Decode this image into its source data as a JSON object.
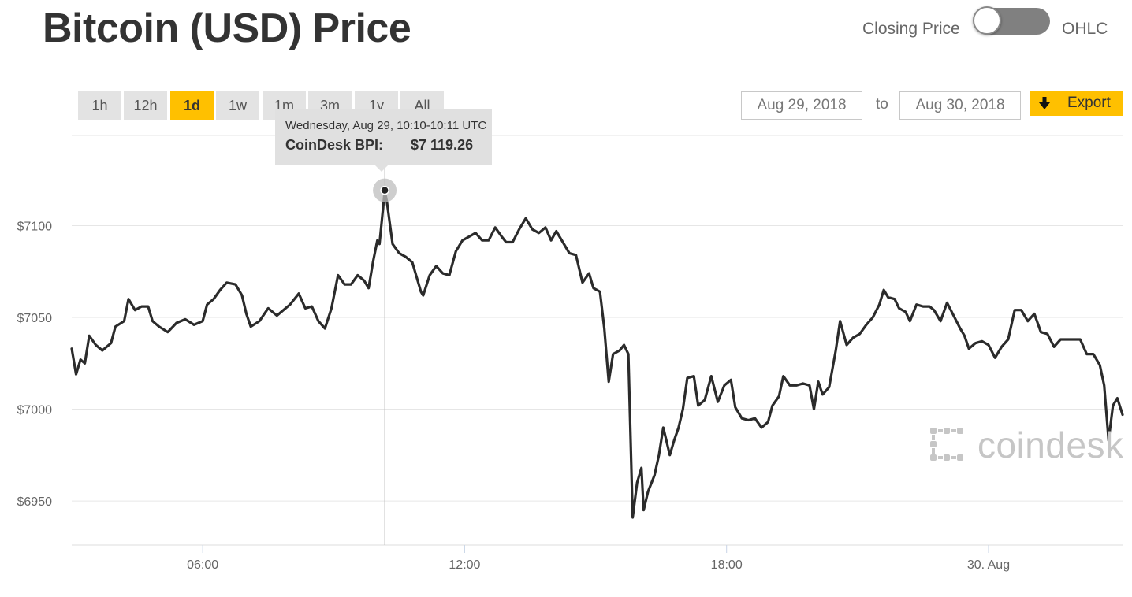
{
  "page": {
    "title": "Bitcoin (USD) Price"
  },
  "view_toggle": {
    "left_label": "Closing Price",
    "right_label": "OHLC",
    "state": "off"
  },
  "range_buttons": [
    {
      "label": "1h",
      "active": false
    },
    {
      "label": "12h",
      "active": false
    },
    {
      "label": "1d",
      "active": true
    },
    {
      "label": "1w",
      "active": false
    },
    {
      "label": "1m",
      "active": false
    },
    {
      "label": "3m",
      "active": false
    },
    {
      "label": "1y",
      "active": false
    },
    {
      "label": "All",
      "active": false
    }
  ],
  "date_range": {
    "from": "Aug 29, 2018",
    "to_label": "to",
    "to": "Aug 30, 2018"
  },
  "export": {
    "label": "Export",
    "icon": "download-arrow-icon"
  },
  "tooltip": {
    "time": "Wednesday, Aug 29, 10:10-10:11 UTC",
    "series_label": "CoinDesk BPI:",
    "value_label": "$7 119.26"
  },
  "logo": {
    "text": "coindesk",
    "icon": "coindesk-logo-icon"
  },
  "colors": {
    "accent": "#ffc000",
    "line": "#2b2b2b",
    "grid": "#e6e6e6",
    "button": "#e3e3e3"
  },
  "chart_data": {
    "type": "line",
    "x_unit": "hours since 00:00 Aug 29 UTC",
    "y_ticks": [
      {
        "value": 7100,
        "label": "$7100"
      },
      {
        "value": 7050,
        "label": "$7050"
      },
      {
        "value": 7000,
        "label": "$7000"
      },
      {
        "value": 6950,
        "label": "$6950"
      }
    ],
    "x_ticks": [
      {
        "value": 6,
        "label": "06:00"
      },
      {
        "value": 12,
        "label": "12:00"
      },
      {
        "value": 18,
        "label": "18:00"
      },
      {
        "value": 24,
        "label": "30. Aug"
      }
    ],
    "ylim": [
      6926,
      7150
    ],
    "xlim": [
      3.0,
      27.07
    ],
    "grid": true,
    "highlight": {
      "x": 10.17,
      "y": 7119.26
    },
    "series": [
      {
        "values": [
          [
            3.0,
            7033
          ],
          [
            3.1,
            7019
          ],
          [
            3.2,
            7027
          ],
          [
            3.3,
            7025
          ],
          [
            3.4,
            7040
          ],
          [
            3.55,
            7035
          ],
          [
            3.7,
            7032
          ],
          [
            3.9,
            7036
          ],
          [
            4.0,
            7045
          ],
          [
            4.2,
            7048
          ],
          [
            4.3,
            7060
          ],
          [
            4.45,
            7054
          ],
          [
            4.6,
            7056
          ],
          [
            4.75,
            7056
          ],
          [
            4.85,
            7048
          ],
          [
            5.0,
            7045
          ],
          [
            5.2,
            7042
          ],
          [
            5.4,
            7047
          ],
          [
            5.6,
            7049
          ],
          [
            5.8,
            7046
          ],
          [
            6.0,
            7048
          ],
          [
            6.1,
            7057
          ],
          [
            6.25,
            7060
          ],
          [
            6.4,
            7065
          ],
          [
            6.55,
            7069
          ],
          [
            6.75,
            7068
          ],
          [
            6.9,
            7062
          ],
          [
            7.0,
            7052
          ],
          [
            7.1,
            7045
          ],
          [
            7.3,
            7048
          ],
          [
            7.5,
            7055
          ],
          [
            7.7,
            7051
          ],
          [
            7.8,
            7053
          ],
          [
            8.0,
            7057
          ],
          [
            8.2,
            7063
          ],
          [
            8.35,
            7055
          ],
          [
            8.5,
            7056
          ],
          [
            8.65,
            7048
          ],
          [
            8.8,
            7044
          ],
          [
            8.95,
            7055
          ],
          [
            9.1,
            7073
          ],
          [
            9.25,
            7068
          ],
          [
            9.4,
            7068
          ],
          [
            9.55,
            7073
          ],
          [
            9.7,
            7070
          ],
          [
            9.8,
            7066
          ],
          [
            9.9,
            7080
          ],
          [
            10.0,
            7092
          ],
          [
            10.05,
            7090
          ],
          [
            10.17,
            7119
          ],
          [
            10.22,
            7113
          ],
          [
            10.35,
            7090
          ],
          [
            10.5,
            7085
          ],
          [
            10.65,
            7083
          ],
          [
            10.8,
            7080
          ],
          [
            10.9,
            7072
          ],
          [
            11.0,
            7064
          ],
          [
            11.05,
            7062
          ],
          [
            11.2,
            7073
          ],
          [
            11.35,
            7078
          ],
          [
            11.5,
            7074
          ],
          [
            11.65,
            7073
          ],
          [
            11.8,
            7086
          ],
          [
            11.95,
            7092
          ],
          [
            12.1,
            7094
          ],
          [
            12.25,
            7096
          ],
          [
            12.4,
            7092
          ],
          [
            12.55,
            7092
          ],
          [
            12.7,
            7099
          ],
          [
            12.85,
            7094
          ],
          [
            12.95,
            7091
          ],
          [
            13.1,
            7091
          ],
          [
            13.25,
            7098
          ],
          [
            13.4,
            7104
          ],
          [
            13.55,
            7098
          ],
          [
            13.7,
            7096
          ],
          [
            13.85,
            7099
          ],
          [
            13.98,
            7092
          ],
          [
            14.1,
            7097
          ],
          [
            14.25,
            7091
          ],
          [
            14.4,
            7085
          ],
          [
            14.55,
            7084
          ],
          [
            14.7,
            7069
          ],
          [
            14.85,
            7074
          ],
          [
            14.95,
            7066
          ],
          [
            15.1,
            7064
          ],
          [
            15.2,
            7044
          ],
          [
            15.3,
            7015
          ],
          [
            15.4,
            7030
          ],
          [
            15.55,
            7032
          ],
          [
            15.65,
            7035
          ],
          [
            15.75,
            7030
          ],
          [
            15.85,
            6941
          ],
          [
            15.95,
            6960
          ],
          [
            16.05,
            6968
          ],
          [
            16.1,
            6945
          ],
          [
            16.2,
            6955
          ],
          [
            16.35,
            6964
          ],
          [
            16.45,
            6975
          ],
          [
            16.55,
            6990
          ],
          [
            16.7,
            6975
          ],
          [
            16.8,
            6983
          ],
          [
            16.9,
            6990
          ],
          [
            17.0,
            7000
          ],
          [
            17.1,
            7017
          ],
          [
            17.25,
            7018
          ],
          [
            17.35,
            7002
          ],
          [
            17.5,
            7005
          ],
          [
            17.65,
            7018
          ],
          [
            17.8,
            7004
          ],
          [
            17.95,
            7013
          ],
          [
            18.1,
            7016
          ],
          [
            18.2,
            7001
          ],
          [
            18.35,
            6995
          ],
          [
            18.5,
            6994
          ],
          [
            18.65,
            6995
          ],
          [
            18.8,
            6990
          ],
          [
            18.95,
            6993
          ],
          [
            19.05,
            7002
          ],
          [
            19.2,
            7007
          ],
          [
            19.3,
            7018
          ],
          [
            19.45,
            7013
          ],
          [
            19.6,
            7013
          ],
          [
            19.75,
            7014
          ],
          [
            19.9,
            7013
          ],
          [
            20.0,
            7000
          ],
          [
            20.1,
            7015
          ],
          [
            20.2,
            7008
          ],
          [
            20.35,
            7012
          ],
          [
            20.5,
            7032
          ],
          [
            20.6,
            7048
          ],
          [
            20.75,
            7035
          ],
          [
            20.9,
            7039
          ],
          [
            21.05,
            7041
          ],
          [
            21.2,
            7046
          ],
          [
            21.35,
            7050
          ],
          [
            21.5,
            7057
          ],
          [
            21.6,
            7065
          ],
          [
            21.7,
            7061
          ],
          [
            21.85,
            7060
          ],
          [
            21.95,
            7055
          ],
          [
            22.1,
            7053
          ],
          [
            22.2,
            7048
          ],
          [
            22.35,
            7057
          ],
          [
            22.5,
            7056
          ],
          [
            22.65,
            7056
          ],
          [
            22.75,
            7054
          ],
          [
            22.9,
            7048
          ],
          [
            23.05,
            7058
          ],
          [
            23.2,
            7051
          ],
          [
            23.35,
            7044
          ],
          [
            23.45,
            7040
          ],
          [
            23.55,
            7033
          ],
          [
            23.7,
            7036
          ],
          [
            23.85,
            7037
          ],
          [
            24.0,
            7035
          ],
          [
            24.15,
            7028
          ],
          [
            24.3,
            7034
          ],
          [
            24.45,
            7038
          ],
          [
            24.6,
            7054
          ],
          [
            24.75,
            7054
          ],
          [
            24.9,
            7048
          ],
          [
            25.05,
            7052
          ],
          [
            25.2,
            7042
          ],
          [
            25.35,
            7041
          ],
          [
            25.5,
            7034
          ],
          [
            25.65,
            7038
          ],
          [
            25.8,
            7038
          ],
          [
            25.95,
            7038
          ],
          [
            26.1,
            7038
          ],
          [
            26.25,
            7030
          ],
          [
            26.4,
            7030
          ],
          [
            26.55,
            7024
          ],
          [
            26.65,
            7013
          ],
          [
            26.75,
            6983
          ],
          [
            26.85,
            7002
          ],
          [
            26.95,
            7006
          ],
          [
            27.07,
            6997
          ]
        ]
      }
    ]
  }
}
